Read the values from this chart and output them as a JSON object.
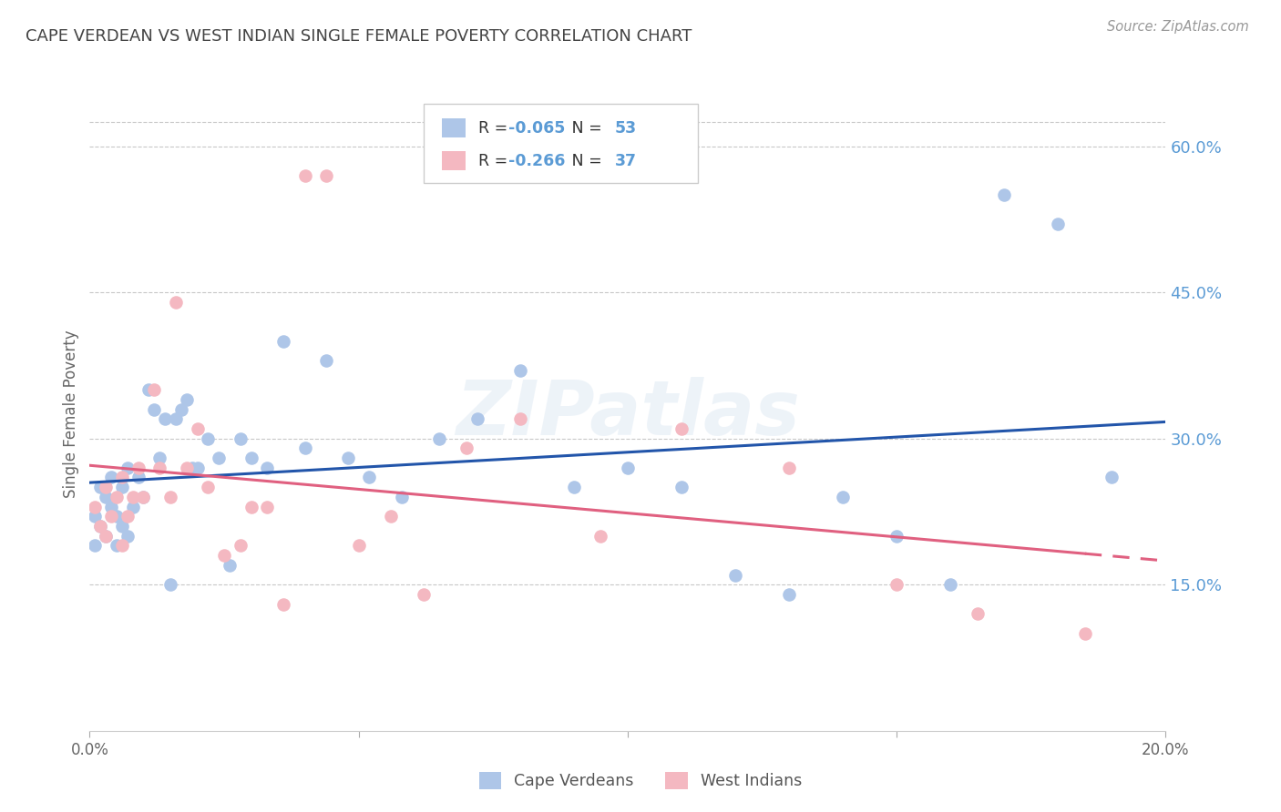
{
  "title": "CAPE VERDEAN VS WEST INDIAN SINGLE FEMALE POVERTY CORRELATION CHART",
  "source": "Source: ZipAtlas.com",
  "ylabel": "Single Female Poverty",
  "x_range": [
    0.0,
    0.2
  ],
  "y_range": [
    0.0,
    0.65
  ],
  "background_color": "#ffffff",
  "grid_color": "#c8c8c8",
  "title_color": "#444444",
  "right_axis_label_color": "#5b9bd5",
  "source_color": "#999999",
  "cape_verdean_color": "#aec6e8",
  "west_indian_color": "#f4b8c1",
  "cape_verdean_line_color": "#2255aa",
  "west_indian_line_color": "#e06080",
  "legend_label_cv": "Cape Verdeans",
  "legend_label_wi": "West Indians",
  "R_cv": -0.065,
  "N_cv": 53,
  "R_wi": -0.266,
  "N_wi": 37,
  "cape_verdean_x": [
    0.001,
    0.001,
    0.002,
    0.002,
    0.003,
    0.003,
    0.004,
    0.004,
    0.005,
    0.005,
    0.006,
    0.006,
    0.007,
    0.007,
    0.008,
    0.009,
    0.01,
    0.011,
    0.012,
    0.013,
    0.014,
    0.015,
    0.016,
    0.017,
    0.018,
    0.019,
    0.02,
    0.022,
    0.024,
    0.026,
    0.028,
    0.03,
    0.033,
    0.036,
    0.04,
    0.044,
    0.048,
    0.052,
    0.058,
    0.065,
    0.072,
    0.08,
    0.09,
    0.1,
    0.11,
    0.12,
    0.13,
    0.14,
    0.15,
    0.16,
    0.17,
    0.18,
    0.19
  ],
  "cape_verdean_y": [
    0.22,
    0.19,
    0.25,
    0.21,
    0.24,
    0.2,
    0.23,
    0.26,
    0.19,
    0.22,
    0.21,
    0.25,
    0.2,
    0.27,
    0.23,
    0.26,
    0.24,
    0.35,
    0.33,
    0.28,
    0.32,
    0.15,
    0.32,
    0.33,
    0.34,
    0.27,
    0.27,
    0.3,
    0.28,
    0.17,
    0.3,
    0.28,
    0.27,
    0.4,
    0.29,
    0.38,
    0.28,
    0.26,
    0.24,
    0.3,
    0.32,
    0.37,
    0.25,
    0.27,
    0.25,
    0.16,
    0.14,
    0.24,
    0.2,
    0.15,
    0.55,
    0.52,
    0.26
  ],
  "west_indian_x": [
    0.001,
    0.002,
    0.003,
    0.003,
    0.004,
    0.005,
    0.006,
    0.006,
    0.007,
    0.008,
    0.009,
    0.01,
    0.012,
    0.013,
    0.015,
    0.016,
    0.018,
    0.02,
    0.022,
    0.025,
    0.028,
    0.03,
    0.033,
    0.036,
    0.04,
    0.044,
    0.05,
    0.056,
    0.062,
    0.07,
    0.08,
    0.095,
    0.11,
    0.13,
    0.15,
    0.165,
    0.185
  ],
  "west_indian_y": [
    0.23,
    0.21,
    0.25,
    0.2,
    0.22,
    0.24,
    0.19,
    0.26,
    0.22,
    0.24,
    0.27,
    0.24,
    0.35,
    0.27,
    0.24,
    0.44,
    0.27,
    0.31,
    0.25,
    0.18,
    0.19,
    0.23,
    0.23,
    0.13,
    0.57,
    0.57,
    0.19,
    0.22,
    0.14,
    0.29,
    0.32,
    0.2,
    0.31,
    0.27,
    0.15,
    0.12,
    0.1
  ]
}
